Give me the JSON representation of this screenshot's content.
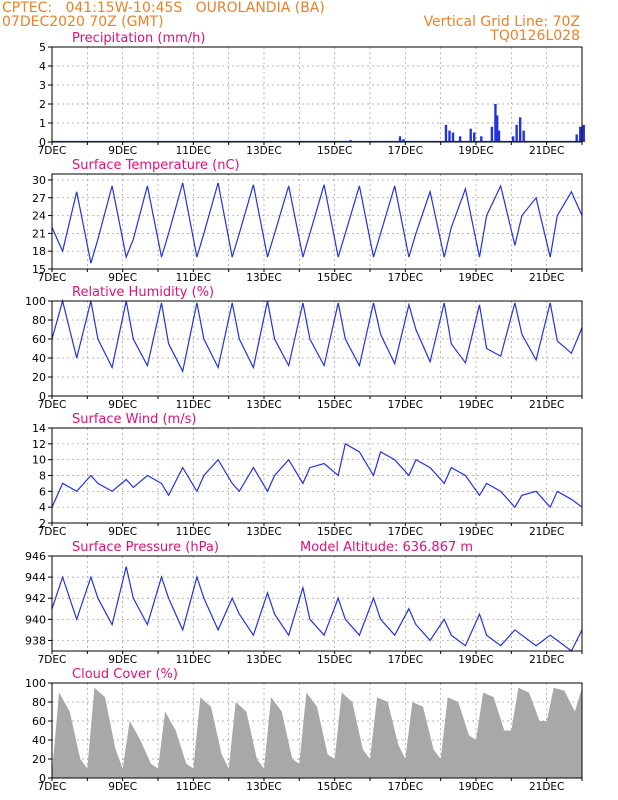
{
  "header": {
    "station": "CPTEC:   041:15W-10:45S   OUROLANDIA (BA)",
    "run": "07DEC2020 70Z (GMT)",
    "grid_note": "Vertical Grid Line: 70Z",
    "code": "TQ0126L028"
  },
  "colors": {
    "header": "#e8822b",
    "title": "#e0107a",
    "line": "#2233dd",
    "cloud": "#a8a8a8"
  },
  "chart_data": [
    {
      "id": "precipitation",
      "type": "bar",
      "title": "Precipitation (mm/h)",
      "x_ticks": [
        "7DEC",
        "9DEC",
        "11DEC",
        "13DEC",
        "15DEC",
        "17DEC",
        "19DEC",
        "21DEC"
      ],
      "ylim": [
        0,
        5
      ],
      "y_ticks": [
        0,
        1,
        2,
        3,
        4,
        5
      ],
      "grid": true,
      "series": [
        {
          "values": [
            [
              15.45,
              0.1
            ],
            [
              16.85,
              0.3
            ],
            [
              16.95,
              0.15
            ],
            [
              18.15,
              0.9
            ],
            [
              18.25,
              0.6
            ],
            [
              18.35,
              0.5
            ],
            [
              18.55,
              0.3
            ],
            [
              18.85,
              0.7
            ],
            [
              18.95,
              0.5
            ],
            [
              19.15,
              0.3
            ],
            [
              19.45,
              0.8
            ],
            [
              19.55,
              2.0
            ],
            [
              19.6,
              1.4
            ],
            [
              19.65,
              0.6
            ],
            [
              20.05,
              0.3
            ],
            [
              20.15,
              0.9
            ],
            [
              20.25,
              1.3
            ],
            [
              20.35,
              0.6
            ],
            [
              21.85,
              0.4
            ],
            [
              21.95,
              0.8
            ],
            [
              22.05,
              0.9
            ]
          ]
        }
      ]
    },
    {
      "id": "temperature",
      "type": "line",
      "title": "Surface Temperature (nC)",
      "x_ticks": [
        "7DEC",
        "9DEC",
        "11DEC",
        "13DEC",
        "15DEC",
        "17DEC",
        "19DEC",
        "21DEC"
      ],
      "ylim": [
        15,
        31
      ],
      "y_ticks": [
        15,
        18,
        21,
        24,
        27,
        30
      ],
      "grid": true,
      "series": [
        {
          "x": [
            7.0,
            7.3,
            7.7,
            8.1,
            8.3,
            8.7,
            9.1,
            9.3,
            9.7,
            10.1,
            10.3,
            10.7,
            11.1,
            11.3,
            11.7,
            12.1,
            12.3,
            12.7,
            13.1,
            13.3,
            13.7,
            14.1,
            14.3,
            14.7,
            15.1,
            15.3,
            15.7,
            16.1,
            16.3,
            16.7,
            17.1,
            17.3,
            17.7,
            18.1,
            18.3,
            18.7,
            19.1,
            19.3,
            19.7,
            20.1,
            20.3,
            20.7,
            21.1,
            21.3,
            21.7,
            22.0
          ],
          "values": [
            22,
            18,
            28,
            16,
            20,
            29,
            17,
            20,
            29,
            17,
            21,
            29.5,
            17,
            21,
            29.5,
            17,
            21,
            29.2,
            17,
            21,
            29,
            17,
            21,
            29.2,
            17,
            21,
            29,
            17,
            21,
            29,
            17,
            21,
            28,
            17,
            22,
            28.5,
            17,
            24,
            29,
            19,
            24,
            27,
            17,
            24,
            28,
            24
          ]
        }
      ]
    },
    {
      "id": "humidity",
      "type": "line",
      "title": "Relative Humidity (%)",
      "x_ticks": [
        "7DEC",
        "9DEC",
        "11DEC",
        "13DEC",
        "15DEC",
        "17DEC",
        "19DEC",
        "21DEC"
      ],
      "ylim": [
        0,
        100
      ],
      "y_ticks": [
        0,
        20,
        40,
        60,
        80,
        100
      ],
      "grid": true,
      "series": [
        {
          "x": [
            7.0,
            7.3,
            7.7,
            8.1,
            8.3,
            8.7,
            9.1,
            9.3,
            9.7,
            10.1,
            10.3,
            10.7,
            11.1,
            11.3,
            11.7,
            12.1,
            12.3,
            12.7,
            13.1,
            13.3,
            13.7,
            14.1,
            14.3,
            14.7,
            15.1,
            15.3,
            15.7,
            16.1,
            16.3,
            16.7,
            17.1,
            17.3,
            17.7,
            18.1,
            18.3,
            18.7,
            19.1,
            19.3,
            19.7,
            20.1,
            20.3,
            20.7,
            21.1,
            21.3,
            21.7,
            22.0
          ],
          "values": [
            60,
            100,
            40,
            100,
            60,
            30,
            100,
            60,
            32,
            98,
            55,
            26,
            98,
            60,
            30,
            98,
            60,
            30,
            100,
            60,
            32,
            98,
            60,
            32,
            98,
            60,
            32,
            98,
            65,
            34,
            96,
            70,
            36,
            98,
            55,
            35,
            96,
            50,
            42,
            98,
            65,
            38,
            98,
            58,
            45,
            72
          ]
        }
      ]
    },
    {
      "id": "wind",
      "type": "line",
      "title": "Surface Wind (m/s)",
      "x_ticks": [
        "7DEC",
        "9DEC",
        "11DEC",
        "13DEC",
        "15DEC",
        "17DEC",
        "19DEC",
        "21DEC"
      ],
      "ylim": [
        2,
        14
      ],
      "y_ticks": [
        2,
        4,
        6,
        8,
        10,
        12,
        14
      ],
      "grid": true,
      "series": [
        {
          "x": [
            7.0,
            7.3,
            7.7,
            8.1,
            8.3,
            8.7,
            9.1,
            9.3,
            9.7,
            10.1,
            10.3,
            10.7,
            11.1,
            11.3,
            11.7,
            12.1,
            12.3,
            12.7,
            13.1,
            13.3,
            13.7,
            14.1,
            14.3,
            14.7,
            15.1,
            15.3,
            15.7,
            16.1,
            16.3,
            16.7,
            17.1,
            17.3,
            17.7,
            18.1,
            18.3,
            18.7,
            19.1,
            19.3,
            19.7,
            20.1,
            20.3,
            20.7,
            21.1,
            21.3,
            21.7,
            22.0
          ],
          "values": [
            4,
            7,
            6,
            8,
            7,
            6,
            7.5,
            6.5,
            8,
            7,
            5.5,
            9,
            6,
            8,
            10,
            7,
            6,
            9,
            6,
            8,
            10,
            7,
            9,
            9.5,
            8,
            12,
            11,
            8,
            11,
            10,
            8,
            10,
            9,
            7,
            9,
            8,
            5.5,
            7,
            6,
            4,
            5.5,
            6,
            4,
            6,
            5,
            4
          ]
        }
      ]
    },
    {
      "id": "pressure",
      "type": "line",
      "title": "Surface Pressure (hPa)",
      "annotation": "Model Altitude: 636.867 m",
      "x_ticks": [
        "7DEC",
        "9DEC",
        "11DEC",
        "13DEC",
        "15DEC",
        "17DEC",
        "19DEC",
        "21DEC"
      ],
      "ylim": [
        937,
        946
      ],
      "y_ticks": [
        938,
        940,
        942,
        944,
        946
      ],
      "grid": true,
      "series": [
        {
          "x": [
            7.0,
            7.3,
            7.7,
            8.1,
            8.3,
            8.7,
            9.1,
            9.3,
            9.7,
            10.1,
            10.3,
            10.7,
            11.1,
            11.3,
            11.7,
            12.1,
            12.3,
            12.7,
            13.1,
            13.3,
            13.7,
            14.1,
            14.3,
            14.7,
            15.1,
            15.3,
            15.7,
            16.1,
            16.3,
            16.7,
            17.1,
            17.3,
            17.7,
            18.1,
            18.3,
            18.7,
            19.1,
            19.3,
            19.7,
            20.1,
            20.3,
            20.7,
            21.1,
            21.3,
            21.7,
            22.0
          ],
          "values": [
            941,
            944,
            940,
            944,
            942,
            939.5,
            945,
            942,
            939.5,
            944,
            942,
            939,
            944,
            942,
            939,
            942,
            940.5,
            938.5,
            942.5,
            940.5,
            938.5,
            943,
            940,
            938.5,
            942,
            940,
            938.5,
            942,
            940,
            938.5,
            941,
            939.5,
            938,
            940,
            938.5,
            937.5,
            940.5,
            938.5,
            937.5,
            939,
            938.5,
            937.5,
            938.5,
            938,
            937,
            939
          ]
        }
      ]
    },
    {
      "id": "cloud",
      "type": "area",
      "title": "Cloud Cover (%)",
      "x_ticks": [
        "7DEC",
        "9DEC",
        "11DEC",
        "13DEC",
        "15DEC",
        "17DEC",
        "19DEC",
        "21DEC"
      ],
      "ylim": [
        0,
        100
      ],
      "y_ticks": [
        0,
        20,
        40,
        60,
        80,
        100
      ],
      "grid": true,
      "series": [
        {
          "x": [
            7.0,
            7.2,
            7.5,
            7.8,
            8.0,
            8.2,
            8.5,
            8.8,
            9.0,
            9.2,
            9.5,
            9.8,
            10.0,
            10.2,
            10.5,
            10.8,
            11.0,
            11.2,
            11.5,
            11.8,
            12.0,
            12.2,
            12.5,
            12.8,
            13.0,
            13.2,
            13.5,
            13.8,
            14.0,
            14.2,
            14.5,
            14.8,
            15.0,
            15.2,
            15.5,
            15.8,
            16.0,
            16.2,
            16.5,
            16.8,
            17.0,
            17.2,
            17.5,
            17.8,
            18.0,
            18.2,
            18.5,
            18.8,
            19.0,
            19.2,
            19.5,
            19.8,
            20.0,
            20.2,
            20.5,
            20.8,
            21.0,
            21.2,
            21.5,
            21.8,
            22.0
          ],
          "values": [
            5,
            90,
            70,
            20,
            10,
            95,
            85,
            30,
            10,
            60,
            40,
            15,
            10,
            70,
            50,
            15,
            10,
            85,
            75,
            25,
            10,
            80,
            70,
            20,
            10,
            85,
            70,
            20,
            15,
            90,
            75,
            25,
            20,
            90,
            80,
            30,
            20,
            85,
            80,
            35,
            20,
            80,
            75,
            30,
            20,
            85,
            80,
            45,
            40,
            90,
            85,
            50,
            50,
            95,
            90,
            60,
            60,
            95,
            92,
            70,
            95
          ]
        }
      ]
    }
  ]
}
